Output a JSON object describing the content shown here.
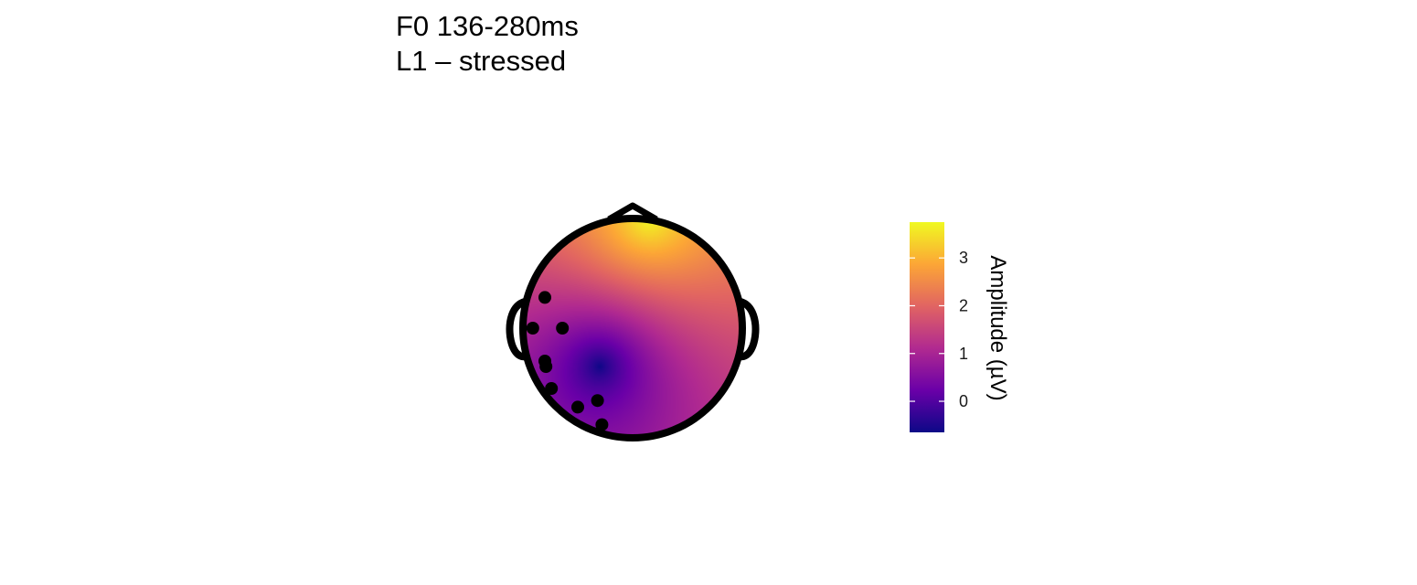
{
  "chart_data": {
    "type": "heatmap",
    "subtype": "scalp-topography",
    "title_lines": [
      "F0 136-280ms",
      "L1 – stressed"
    ],
    "legend": {
      "title": "Amplitude (µV)",
      "placement": "right",
      "ticks": [
        0,
        1,
        2,
        3
      ],
      "range": [
        -0.65,
        3.75
      ],
      "palette": [
        "#0d0887",
        "#6a00a8",
        "#b12a90",
        "#e16462",
        "#fca636",
        "#f0f921"
      ]
    },
    "field": {
      "minimum": {
        "x": -0.3,
        "y": -0.35,
        "value": -0.65
      },
      "maximum": {
        "x": 0.15,
        "y": 1.0,
        "value": 3.75
      }
    },
    "electrodes": [
      {
        "x": -0.8,
        "y": 0.28
      },
      {
        "x": -0.91,
        "y": 0.0
      },
      {
        "x": -0.64,
        "y": 0.0
      },
      {
        "x": -0.8,
        "y": -0.3
      },
      {
        "x": -0.79,
        "y": -0.35
      },
      {
        "x": -0.74,
        "y": -0.55
      },
      {
        "x": -0.5,
        "y": -0.72
      },
      {
        "x": -0.32,
        "y": -0.66
      },
      {
        "x": -0.28,
        "y": -0.88
      }
    ]
  }
}
